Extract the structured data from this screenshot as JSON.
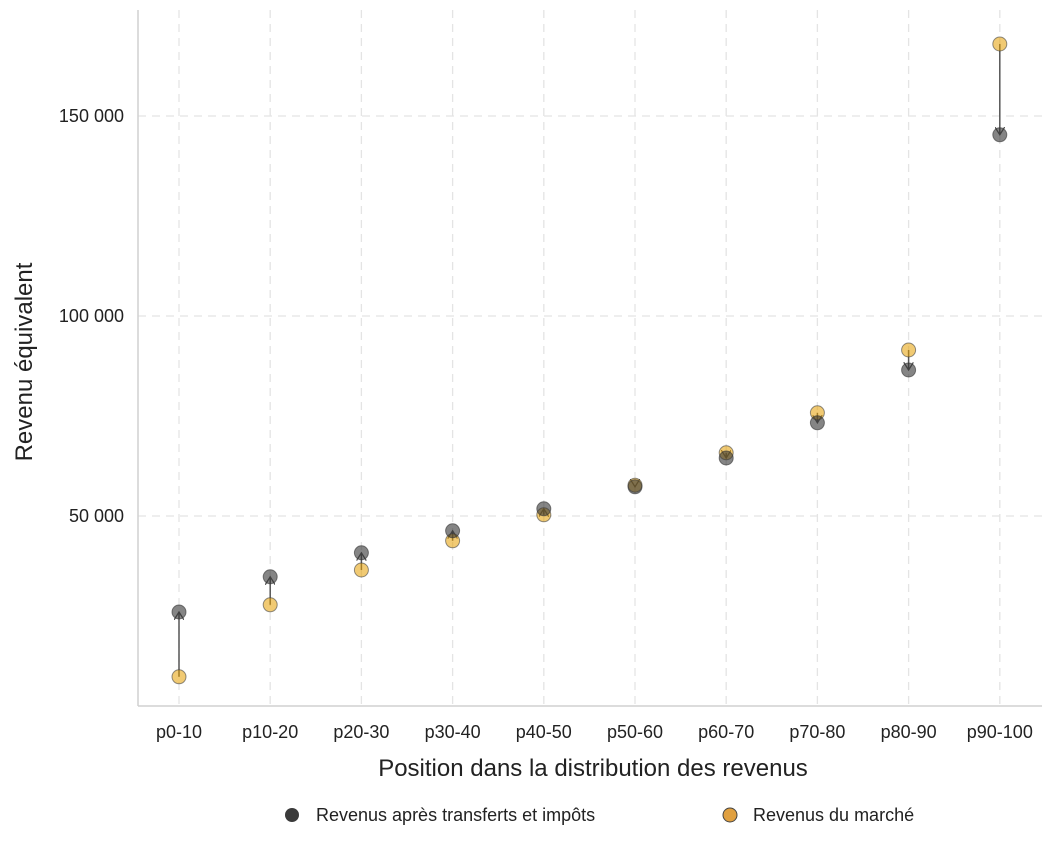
{
  "chart_data": {
    "type": "scatter",
    "title": "",
    "xlabel": "Position dans la distribution des revenus",
    "ylabel": "Revenu équivalent",
    "categories": [
      "p0-10",
      "p10-20",
      "p20-30",
      "p30-40",
      "p40-50",
      "p50-60",
      "p60-70",
      "p70-80",
      "p80-90",
      "p90-100"
    ],
    "ylim": [
      0,
      175000
    ],
    "yticks": [
      50000,
      100000,
      150000
    ],
    "ytick_labels": [
      "50 000",
      "100 000",
      "150 000"
    ],
    "grid": true,
    "legend_position": "bottom",
    "series": [
      {
        "name": "Revenus après transferts et impôts",
        "color": "#333333",
        "values": [
          26000,
          34800,
          40800,
          46300,
          51800,
          57300,
          64500,
          73300,
          86500,
          145300
        ]
      },
      {
        "name": "Revenus du marché",
        "color": "#E69F00",
        "values": [
          9800,
          27800,
          36500,
          43800,
          50300,
          57700,
          65800,
          75800,
          91500,
          168000
        ]
      }
    ],
    "arrows": "from market income to post-transfer income"
  }
}
